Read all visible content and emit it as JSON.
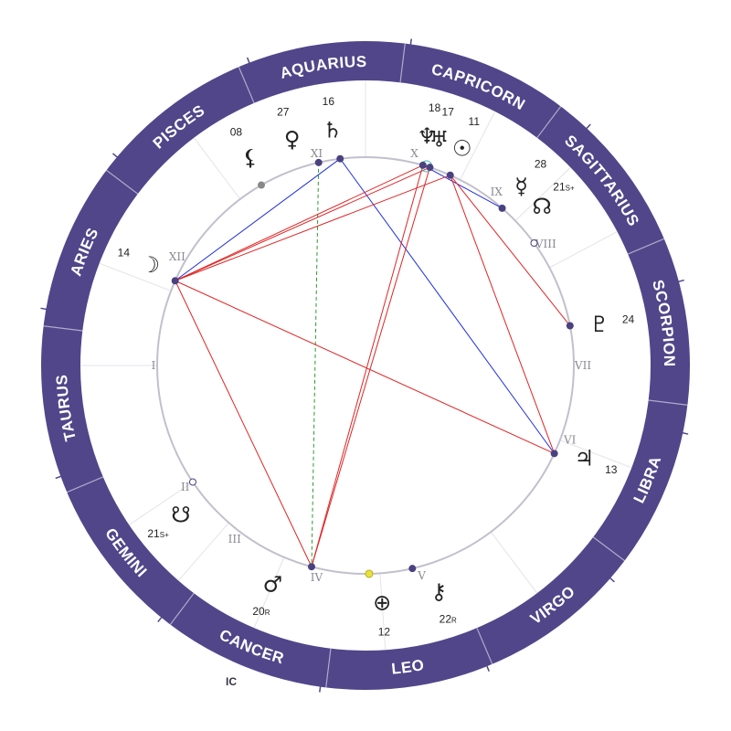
{
  "colors": {
    "wheel": "#51468a",
    "inner_circle": "#c2c0cc",
    "point": "#4a4280",
    "harmonious_aspect": "#1f2ddd",
    "tense_aspect": "#e02424",
    "axis_line": "#2a9b2a",
    "sun_point": "#e8e23b"
  },
  "signs": [
    {
      "name": "AQUARIUS",
      "start": 247
    },
    {
      "name": "CAPRICORN",
      "start": 277
    },
    {
      "name": "SAGITTARIUS",
      "start": 307
    },
    {
      "name": "SCORPION",
      "start": 337
    },
    {
      "name": "LIBRA",
      "start": 7
    },
    {
      "name": "VIRGO",
      "start": 37
    },
    {
      "name": "LEO",
      "start": 67
    },
    {
      "name": "CANCER",
      "start": 97
    },
    {
      "name": "GEMINI",
      "start": 127
    },
    {
      "name": "TAURUS",
      "start": 157
    },
    {
      "name": "ARIES",
      "start": 187
    },
    {
      "name": "PISCES",
      "start": 217
    }
  ],
  "houses": [
    {
      "label": "I",
      "angle": 180
    },
    {
      "label": "II",
      "angle": 146
    },
    {
      "label": "III",
      "angle": 127
    },
    {
      "label": "IV",
      "angle": 103
    },
    {
      "label": "V",
      "angle": 75
    },
    {
      "label": "VI",
      "angle": 20
    },
    {
      "label": "VII",
      "angle": 0
    },
    {
      "label": "VIII",
      "angle": -34
    },
    {
      "label": "IX",
      "angle": -53
    },
    {
      "label": "X",
      "angle": -77
    },
    {
      "label": "XI",
      "angle": -103
    },
    {
      "label": "XII",
      "angle": -150
    }
  ],
  "planets": [
    {
      "name": "saturn",
      "glyph": "♄",
      "degree": "16",
      "suffix": "",
      "angle": -98
    },
    {
      "name": "venus",
      "glyph": "♀",
      "degree": "27",
      "suffix": "",
      "angle": -108
    },
    {
      "name": "black-moon-lilith",
      "glyph": "⚸",
      "degree": "08",
      "suffix": "",
      "angle": -119
    },
    {
      "name": "moon",
      "glyph": "☽",
      "degree": "14",
      "suffix": "",
      "angle": -155
    },
    {
      "name": "neptune",
      "glyph": "♆",
      "degree": "18",
      "suffix": "",
      "angle": -75
    },
    {
      "name": "uranus",
      "glyph": "♅",
      "degree": "17",
      "suffix": "",
      "angle": -72
    },
    {
      "name": "sun",
      "glyph": "☉",
      "degree": "11",
      "suffix": "",
      "angle": -66
    },
    {
      "name": "mercury",
      "glyph": "☿",
      "degree": "28",
      "suffix": "",
      "angle": -49
    },
    {
      "name": "north-node",
      "glyph": "☊",
      "degree": "21",
      "suffix": "S+",
      "angle": -42
    },
    {
      "name": "pluto",
      "glyph": "♇",
      "degree": "24",
      "suffix": "",
      "angle": -10
    },
    {
      "name": "jupiter",
      "glyph": "♃",
      "degree": "13",
      "suffix": "",
      "angle": 23
    },
    {
      "name": "chiron",
      "glyph": "⚷",
      "degree": "22",
      "suffix": "R",
      "angle": 72
    },
    {
      "name": "earth",
      "glyph": "⊕",
      "degree": "12",
      "suffix": "",
      "angle": 86
    },
    {
      "name": "mars",
      "glyph": "♂",
      "degree": "20",
      "suffix": "R",
      "angle": 113
    },
    {
      "name": "south-node",
      "glyph": "☋",
      "degree": "21",
      "suffix": "S+",
      "angle": 141
    }
  ],
  "axis_labels": {
    "ic": "IC"
  }
}
